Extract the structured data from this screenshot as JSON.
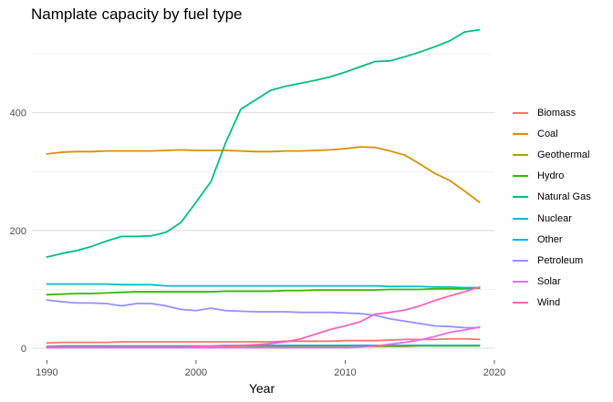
{
  "chart_data": {
    "type": "line",
    "title": "Namplate capacity by fuel type",
    "xlabel": "Year",
    "ylabel": "",
    "xlim": [
      1989,
      2020
    ],
    "ylim": [
      -20,
      545
    ],
    "x_ticks": [
      1990,
      2000,
      2010,
      2020
    ],
    "y_ticks": [
      0,
      200,
      400
    ],
    "y_minor_gridlines": [
      100,
      300,
      500
    ],
    "grid": true,
    "legend": "right",
    "x": [
      1990,
      1991,
      1992,
      1993,
      1994,
      1995,
      1996,
      1997,
      1998,
      1999,
      2000,
      2001,
      2002,
      2003,
      2004,
      2005,
      2006,
      2007,
      2008,
      2009,
      2010,
      2011,
      2012,
      2013,
      2014,
      2015,
      2016,
      2017,
      2018,
      2019
    ],
    "series": [
      {
        "name": "Biomass",
        "color": "#F8766D",
        "values": [
          9,
          10,
          10,
          10,
          10,
          11,
          11,
          11,
          11,
          11,
          11,
          11,
          11,
          11,
          11,
          11,
          12,
          12,
          12,
          12,
          13,
          13,
          13,
          14,
          15,
          15,
          15,
          16,
          16,
          15
        ]
      },
      {
        "name": "Coal",
        "color": "#D89000",
        "values": [
          330,
          333,
          334,
          334,
          335,
          335,
          335,
          335,
          336,
          337,
          336,
          336,
          336,
          335,
          334,
          334,
          335,
          335,
          336,
          337,
          339,
          342,
          341,
          335,
          328,
          313,
          297,
          285,
          267,
          248
        ]
      },
      {
        "name": "Geothermal",
        "color": "#A3A500",
        "values": [
          3,
          3,
          3,
          3,
          3,
          3,
          3,
          3,
          3,
          3,
          3,
          3,
          3,
          3,
          3,
          3,
          3,
          3,
          3,
          3,
          3,
          3,
          3,
          3,
          3,
          4,
          4,
          4,
          4,
          4
        ]
      },
      {
        "name": "Hydro",
        "color": "#39B600",
        "values": [
          91,
          92,
          93,
          93,
          94,
          95,
          96,
          96,
          96,
          96,
          96,
          96,
          97,
          97,
          97,
          97,
          98,
          98,
          99,
          99,
          99,
          99,
          99,
          100,
          100,
          100,
          101,
          101,
          101,
          102
        ]
      },
      {
        "name": "Natural Gas",
        "color": "#00BF7D",
        "values": [
          155,
          161,
          166,
          173,
          182,
          190,
          190,
          191,
          197,
          214,
          248,
          283,
          350,
          406,
          422,
          438,
          445,
          450,
          455,
          461,
          469,
          478,
          487,
          488,
          495,
          503,
          512,
          522,
          537,
          541
        ]
      },
      {
        "name": "Nuclear",
        "color": "#00BFC4",
        "values": [
          109,
          109,
          109,
          109,
          109,
          108,
          108,
          108,
          106,
          106,
          106,
          106,
          106,
          106,
          106,
          106,
          106,
          106,
          106,
          106,
          106,
          106,
          106,
          105,
          105,
          105,
          104,
          104,
          103,
          103
        ]
      },
      {
        "name": "Other",
        "color": "#00B0F6",
        "values": [
          3,
          4,
          4,
          4,
          4,
          4,
          4,
          4,
          4,
          4,
          4,
          4,
          5,
          5,
          5,
          5,
          5,
          5,
          5,
          5,
          5,
          5,
          5,
          5,
          5,
          5,
          5,
          5,
          5,
          5
        ]
      },
      {
        "name": "Petroleum",
        "color": "#9590FF",
        "values": [
          82,
          79,
          77,
          77,
          76,
          72,
          76,
          76,
          72,
          66,
          64,
          68,
          64,
          63,
          62,
          62,
          62,
          61,
          61,
          61,
          60,
          59,
          56,
          50,
          46,
          42,
          38,
          37,
          35,
          35
        ]
      },
      {
        "name": "Solar",
        "color": "#E76BF3",
        "values": [
          1,
          1,
          1,
          1,
          1,
          1,
          1,
          1,
          1,
          1,
          1,
          1,
          1,
          1,
          1,
          1,
          1,
          1,
          1,
          1,
          1,
          2,
          4,
          7,
          10,
          14,
          20,
          27,
          31,
          36
        ]
      },
      {
        "name": "Wind",
        "color": "#FF62BC",
        "values": [
          2,
          2,
          2,
          2,
          2,
          2,
          2,
          2,
          2,
          2,
          3,
          4,
          4,
          5,
          6,
          8,
          11,
          16,
          24,
          32,
          38,
          45,
          58,
          61,
          65,
          72,
          81,
          89,
          96,
          104
        ]
      }
    ]
  }
}
